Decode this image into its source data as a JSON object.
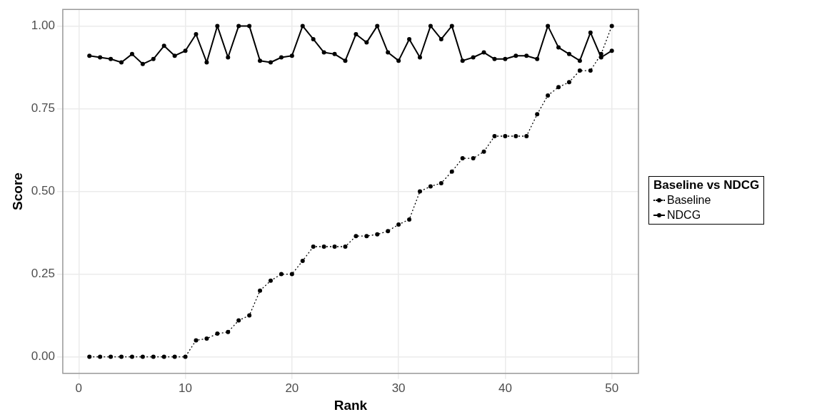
{
  "chart_data": {
    "type": "line",
    "xlabel": "Rank",
    "ylabel": "Score",
    "legend_title": "Baseline vs NDCG",
    "x": [
      1,
      2,
      3,
      4,
      5,
      6,
      7,
      8,
      9,
      10,
      11,
      12,
      13,
      14,
      15,
      16,
      17,
      18,
      19,
      20,
      21,
      22,
      23,
      24,
      25,
      26,
      27,
      28,
      29,
      30,
      31,
      32,
      33,
      34,
      35,
      36,
      37,
      38,
      39,
      40,
      41,
      42,
      43,
      44,
      45,
      46,
      47,
      48,
      49,
      50
    ],
    "series": [
      {
        "name": "Baseline",
        "color": "#000000",
        "line_style": "dotted",
        "values": [
          0,
          0,
          0,
          0,
          0,
          0,
          0,
          0,
          0,
          0,
          0.05,
          0.055,
          0.07,
          0.075,
          0.11,
          0.125,
          0.2,
          0.23,
          0.25,
          0.25,
          0.29,
          0.333,
          0.333,
          0.333,
          0.333,
          0.365,
          0.365,
          0.37,
          0.38,
          0.4,
          0.415,
          0.5,
          0.515,
          0.525,
          0.56,
          0.6,
          0.6,
          0.62,
          0.667,
          0.667,
          0.667,
          0.667,
          0.733,
          0.79,
          0.815,
          0.83,
          0.865,
          0.865,
          0.915,
          1.0
        ]
      },
      {
        "name": "NDCG",
        "color": "#000000",
        "line_style": "solid",
        "values": [
          0.91,
          0.905,
          0.9,
          0.89,
          0.915,
          0.885,
          0.9,
          0.94,
          0.91,
          0.925,
          0.975,
          0.89,
          1.0,
          0.905,
          1.0,
          1.0,
          0.895,
          0.89,
          0.905,
          0.91,
          1.0,
          0.96,
          0.92,
          0.915,
          0.895,
          0.975,
          0.95,
          1.0,
          0.92,
          0.895,
          0.96,
          0.905,
          1.0,
          0.96,
          1.0,
          0.895,
          0.905,
          0.92,
          0.9,
          0.9,
          0.91,
          0.91,
          0.9,
          1.0,
          0.935,
          0.915,
          0.895,
          0.98,
          0.905,
          0.925
        ]
      }
    ],
    "xlim": [
      -1.5,
      52.5
    ],
    "xticks": [
      0,
      10,
      20,
      30,
      40,
      50
    ],
    "ylim": [
      -0.05,
      1.05
    ],
    "yticks": [
      {
        "value": 0,
        "label": "0.00"
      },
      {
        "value": 0.25,
        "label": "0.25"
      },
      {
        "value": 0.5,
        "label": "0.50"
      },
      {
        "value": 0.75,
        "label": "0.75"
      },
      {
        "value": 1,
        "label": "1.00"
      }
    ],
    "grid": true,
    "legend": "right",
    "marker": "circle"
  }
}
